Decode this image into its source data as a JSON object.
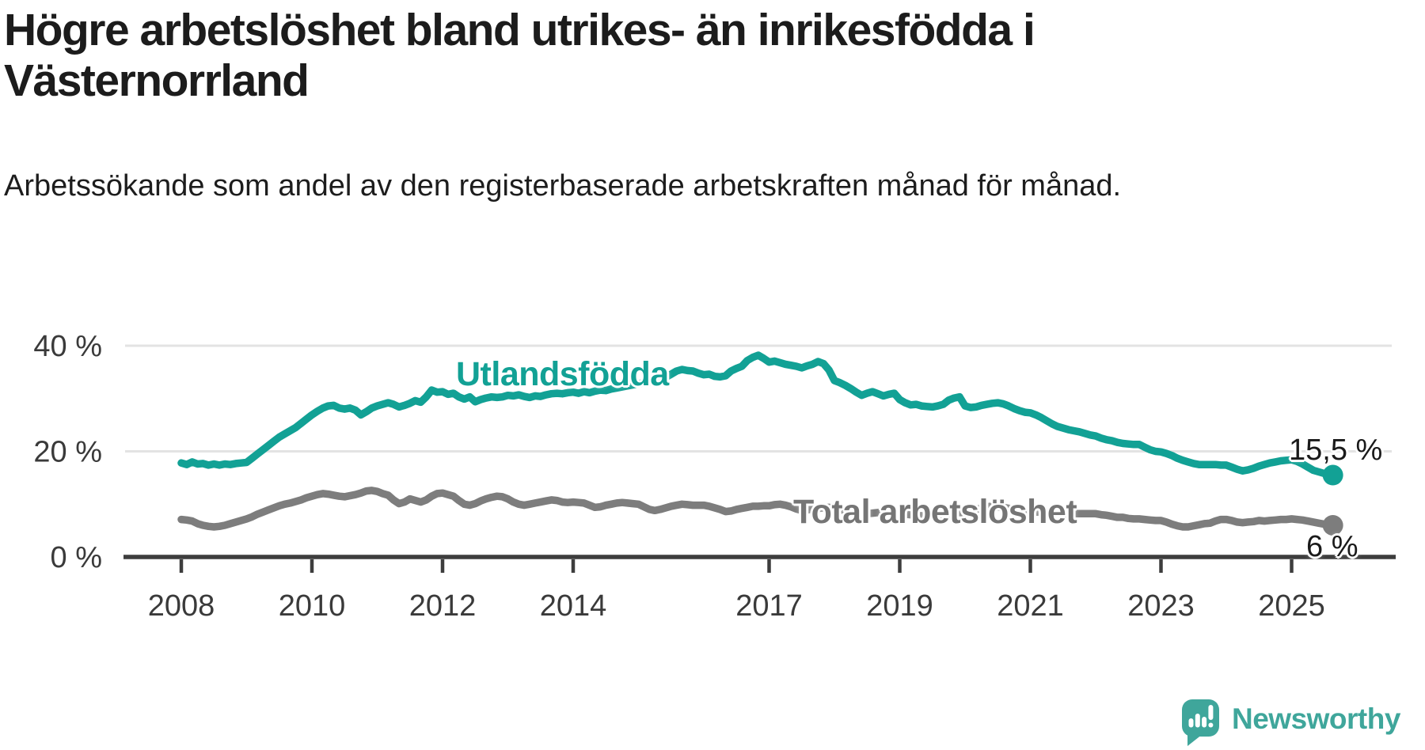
{
  "header": {
    "title": "Högre arbetslöshet bland utrikes- än inrikesfödda i Västernorrland",
    "subtitle": "Arbetssökande som andel av den registerbaserade arbetskraften månad för månad."
  },
  "footer": {
    "brand": "Newsworthy",
    "brand_color": "#3fa69b"
  },
  "colors": {
    "teal": "#12a195",
    "gray": "#7d7d7d",
    "axis_text": "#3a3a3a",
    "grid": "#e3e3e3",
    "axis_line": "#3d3d3d"
  },
  "chart_data": {
    "type": "line",
    "title": "Högre arbetslöshet bland utrikes- än inrikesfödda i Västernorrland",
    "xlabel": "",
    "ylabel": "Arbetssökande som andel av den registerbaserade arbetskraften",
    "frequency": "monthly",
    "x_start": "2008-01",
    "x_end": "2025-08",
    "ylim": [
      0,
      42
    ],
    "grid": "horizontal",
    "legend": "inline-labels",
    "ytick_values": [
      0,
      20,
      40
    ],
    "ytick_labels": [
      "0 %",
      "20 %",
      "40 %"
    ],
    "xtick_years": [
      2008,
      2010,
      2012,
      2014,
      2017,
      2019,
      2021,
      2023,
      2025
    ],
    "series": [
      {
        "name": "Utlandsfödda",
        "color": "#12a195",
        "end_label": "15,5 %",
        "end_value": 15.5,
        "values": [
          17.8,
          17.5,
          18.0,
          17.6,
          17.7,
          17.4,
          17.6,
          17.4,
          17.6,
          17.5,
          17.7,
          17.8,
          17.9,
          18.7,
          19.5,
          20.3,
          21.1,
          21.9,
          22.7,
          23.3,
          23.9,
          24.5,
          25.3,
          26.1,
          26.9,
          27.6,
          28.2,
          28.6,
          28.7,
          28.2,
          28.0,
          28.2,
          27.8,
          26.9,
          27.5,
          28.2,
          28.6,
          28.9,
          29.2,
          28.9,
          28.4,
          28.7,
          29.1,
          29.6,
          29.3,
          30.3,
          31.6,
          31.2,
          31.3,
          30.8,
          31.0,
          30.3,
          29.9,
          30.3,
          29.4,
          29.8,
          30.1,
          30.3,
          30.2,
          30.3,
          30.6,
          30.5,
          30.7,
          30.4,
          30.2,
          30.5,
          30.4,
          30.7,
          30.9,
          31.0,
          30.9,
          31.1,
          31.2,
          31.0,
          31.3,
          31.1,
          31.4,
          31.6,
          31.5,
          31.8,
          32.0,
          32.2,
          32.4,
          32.6,
          32.8,
          33.0,
          33.2,
          33.4,
          33.7,
          34.0,
          34.6,
          35.2,
          35.5,
          35.3,
          35.2,
          34.8,
          34.5,
          34.6,
          34.2,
          34.1,
          34.3,
          35.2,
          35.7,
          36.1,
          37.2,
          37.8,
          38.2,
          37.6,
          36.9,
          37.1,
          36.8,
          36.5,
          36.3,
          36.1,
          35.8,
          36.2,
          36.5,
          37.0,
          36.6,
          35.4,
          33.4,
          33.0,
          32.5,
          31.9,
          31.2,
          30.6,
          31.0,
          31.3,
          30.9,
          30.5,
          30.8,
          31.0,
          29.8,
          29.2,
          28.8,
          28.9,
          28.6,
          28.5,
          28.4,
          28.6,
          28.9,
          29.7,
          30.1,
          30.3,
          28.6,
          28.3,
          28.4,
          28.7,
          28.9,
          29.1,
          29.2,
          29.0,
          28.6,
          28.1,
          27.7,
          27.4,
          27.3,
          26.9,
          26.4,
          25.8,
          25.2,
          24.7,
          24.4,
          24.1,
          23.9,
          23.7,
          23.4,
          23.1,
          22.9,
          22.5,
          22.2,
          22.0,
          21.7,
          21.5,
          21.4,
          21.3,
          21.3,
          20.8,
          20.3,
          20.0,
          19.9,
          19.6,
          19.2,
          18.7,
          18.3,
          18.0,
          17.7,
          17.5,
          17.5,
          17.5,
          17.5,
          17.4,
          17.4,
          17.0,
          16.6,
          16.3,
          16.5,
          16.8,
          17.2,
          17.5,
          17.8,
          18.0,
          18.2,
          18.3,
          18.4,
          18.1,
          17.6,
          17.0,
          16.4,
          16.1,
          15.8,
          15.5
        ]
      },
      {
        "name": "Total arbetslöshet",
        "color": "#7d7d7d",
        "end_label": "6 %",
        "end_value": 6,
        "values": [
          7.1,
          7.0,
          6.8,
          6.3,
          6.0,
          5.8,
          5.7,
          5.8,
          6.0,
          6.3,
          6.6,
          6.9,
          7.2,
          7.6,
          8.1,
          8.5,
          8.9,
          9.3,
          9.7,
          10.0,
          10.2,
          10.5,
          10.8,
          11.2,
          11.5,
          11.8,
          12.0,
          11.9,
          11.7,
          11.5,
          11.4,
          11.6,
          11.8,
          12.1,
          12.5,
          12.6,
          12.4,
          12.0,
          11.7,
          10.8,
          10.1,
          10.4,
          11.0,
          10.7,
          10.4,
          10.8,
          11.5,
          12.0,
          12.1,
          11.8,
          11.5,
          10.7,
          10.0,
          9.8,
          10.1,
          10.6,
          11.0,
          11.3,
          11.5,
          11.4,
          11.0,
          10.4,
          10.0,
          9.8,
          10.0,
          10.2,
          10.4,
          10.6,
          10.8,
          10.7,
          10.4,
          10.3,
          10.4,
          10.3,
          10.2,
          9.8,
          9.4,
          9.5,
          9.8,
          10.0,
          10.2,
          10.3,
          10.2,
          10.1,
          10.0,
          9.5,
          9.0,
          8.8,
          9.0,
          9.3,
          9.6,
          9.8,
          10.0,
          9.9,
          9.8,
          9.8,
          9.8,
          9.6,
          9.3,
          9.0,
          8.6,
          8.7,
          9.0,
          9.2,
          9.4,
          9.6,
          9.6,
          9.7,
          9.7,
          9.9,
          10.0,
          9.8,
          9.5,
          9.1,
          8.8,
          8.9,
          9.1,
          9.2,
          9.3,
          9.4,
          9.2,
          9.0,
          8.8,
          8.6,
          8.4,
          8.3,
          8.2,
          8.3,
          8.4,
          8.4,
          8.3,
          8.2,
          8.2,
          8.1,
          8.0,
          7.9,
          7.8,
          7.8,
          7.9,
          8.0,
          8.1,
          8.2,
          8.3,
          8.4,
          8.4,
          8.5,
          8.9,
          9.3,
          9.5,
          9.6,
          9.5,
          9.4,
          9.2,
          9.0,
          8.8,
          8.7,
          8.6,
          8.5,
          8.5,
          8.4,
          8.3,
          8.3,
          8.2,
          8.2,
          8.2,
          8.2,
          8.2,
          8.2,
          8.2,
          8.0,
          7.9,
          7.7,
          7.5,
          7.5,
          7.3,
          7.2,
          7.2,
          7.1,
          7.0,
          6.9,
          6.9,
          6.6,
          6.2,
          5.9,
          5.7,
          5.7,
          5.9,
          6.1,
          6.3,
          6.4,
          6.8,
          7.1,
          7.1,
          6.9,
          6.6,
          6.5,
          6.6,
          6.7,
          6.9,
          6.8,
          6.9,
          7.0,
          7.1,
          7.1,
          7.2,
          7.1,
          7.0,
          6.8,
          6.6,
          6.4,
          6.2,
          6.0
        ]
      }
    ]
  }
}
